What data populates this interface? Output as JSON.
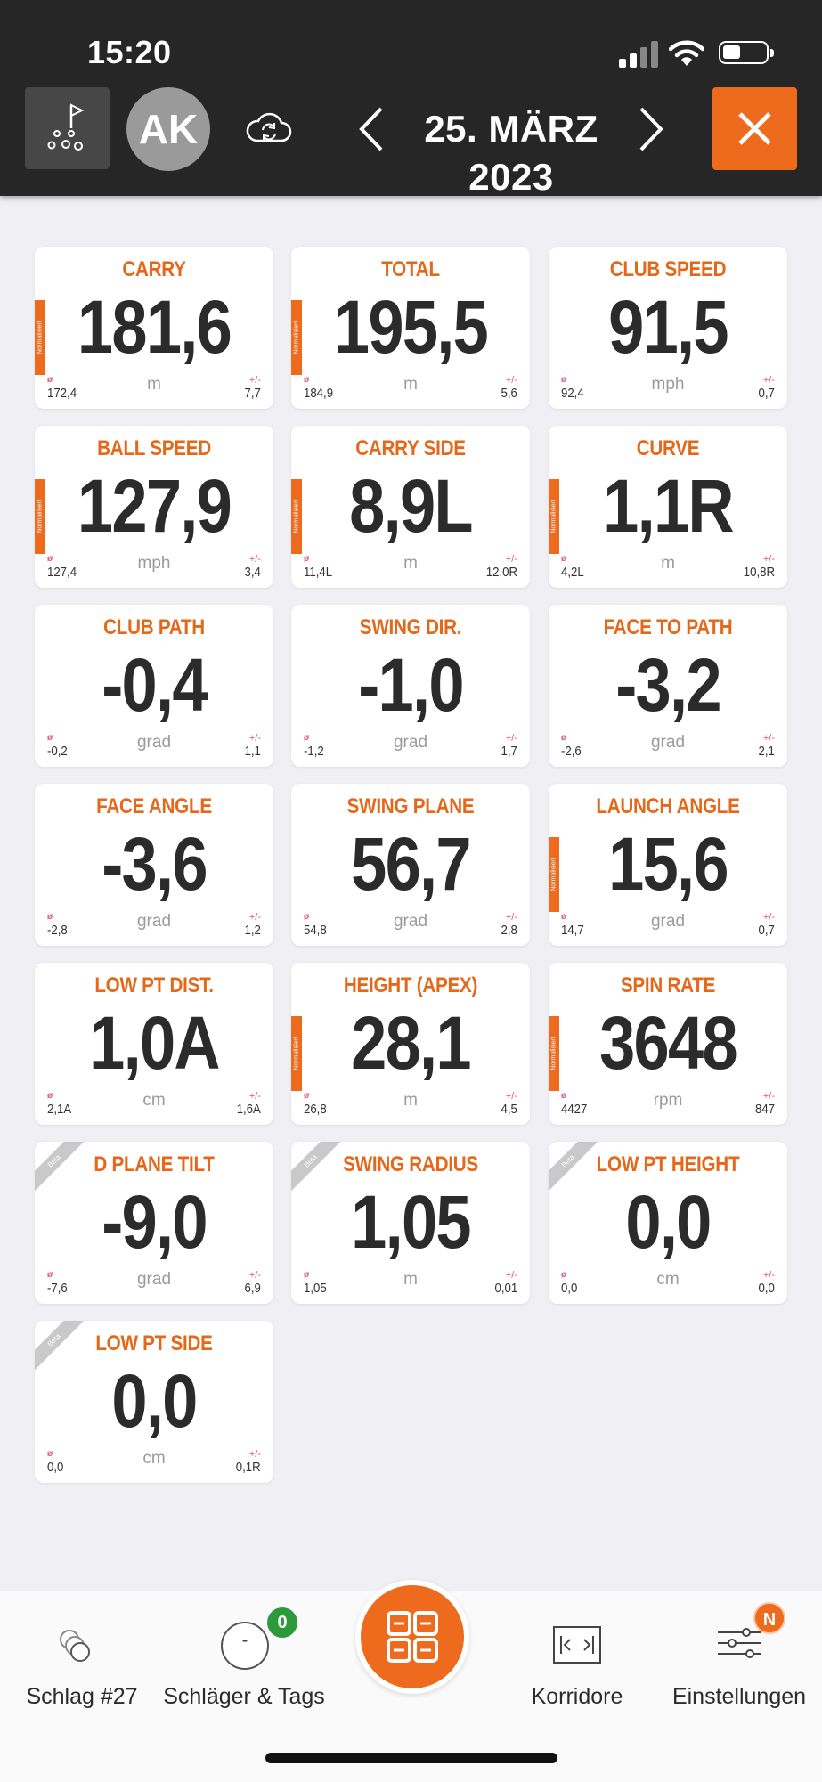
{
  "status_bar": {
    "time": "15:20"
  },
  "header": {
    "avatar_initials": "AK",
    "date": "25. MÄRZ 2023",
    "icons": [
      "golf-course-icon",
      "cloud-sync-icon",
      "chevron-left-icon",
      "chevron-right-icon",
      "close-icon"
    ],
    "accent_color": "#ee6a1d"
  },
  "tiles": [
    {
      "label": "CARRY",
      "value": "181,6",
      "unit": "m",
      "avg_symbol": "ø",
      "avg": "172,4",
      "pm_symbol": "+/-",
      "pm": "7,7",
      "normalized": true,
      "norm_text": "Normalisiert"
    },
    {
      "label": "TOTAL",
      "value": "195,5",
      "unit": "m",
      "avg_symbol": "ø",
      "avg": "184,9",
      "pm_symbol": "+/-",
      "pm": "5,6",
      "normalized": true,
      "norm_text": "Normalisiert"
    },
    {
      "label": "CLUB SPEED",
      "value": "91,5",
      "unit": "mph",
      "avg_symbol": "ø",
      "avg": "92,4",
      "pm_symbol": "+/-",
      "pm": "0,7"
    },
    {
      "label": "BALL SPEED",
      "value": "127,9",
      "unit": "mph",
      "avg_symbol": "ø",
      "avg": "127,4",
      "pm_symbol": "+/-",
      "pm": "3,4",
      "normalized": true,
      "norm_text": "Normalisiert"
    },
    {
      "label": "CARRY SIDE",
      "value": "8,9L",
      "unit": "m",
      "avg_symbol": "ø",
      "avg": "11,4L",
      "pm_symbol": "+/-",
      "pm": "12,0R",
      "normalized": true,
      "norm_text": "Normalisiert"
    },
    {
      "label": "CURVE",
      "value": "1,1R",
      "unit": "m",
      "avg_symbol": "ø",
      "avg": "4,2L",
      "pm_symbol": "+/-",
      "pm": "10,8R",
      "normalized": true,
      "norm_text": "Normalisiert"
    },
    {
      "label": "CLUB PATH",
      "value": "-0,4",
      "unit": "grad",
      "avg_symbol": "ø",
      "avg": "-0,2",
      "pm_symbol": "+/-",
      "pm": "1,1"
    },
    {
      "label": "SWING DIR.",
      "value": "-1,0",
      "unit": "grad",
      "avg_symbol": "ø",
      "avg": "-1,2",
      "pm_symbol": "+/-",
      "pm": "1,7"
    },
    {
      "label": "FACE TO PATH",
      "value": "-3,2",
      "unit": "grad",
      "avg_symbol": "ø",
      "avg": "-2,6",
      "pm_symbol": "+/-",
      "pm": "2,1"
    },
    {
      "label": "FACE ANGLE",
      "value": "-3,6",
      "unit": "grad",
      "avg_symbol": "ø",
      "avg": "-2,8",
      "pm_symbol": "+/-",
      "pm": "1,2"
    },
    {
      "label": "SWING PLANE",
      "value": "56,7",
      "unit": "grad",
      "avg_symbol": "ø",
      "avg": "54,8",
      "pm_symbol": "+/-",
      "pm": "2,8"
    },
    {
      "label": "LAUNCH ANGLE",
      "value": "15,6",
      "unit": "grad",
      "avg_symbol": "ø",
      "avg": "14,7",
      "pm_symbol": "+/-",
      "pm": "0,7",
      "normalized": true,
      "norm_text": "Normalisiert"
    },
    {
      "label": "LOW PT DIST.",
      "value": "1,0A",
      "unit": "cm",
      "avg_symbol": "ø",
      "avg": "2,1A",
      "pm_symbol": "+/-",
      "pm": "1,6A"
    },
    {
      "label": "HEIGHT (APEX)",
      "value": "28,1",
      "unit": "m",
      "avg_symbol": "ø",
      "avg": "26,8",
      "pm_symbol": "+/-",
      "pm": "4,5",
      "normalized": true,
      "norm_text": "Normalisiert"
    },
    {
      "label": "SPIN RATE",
      "value": "3648",
      "unit": "rpm",
      "avg_symbol": "ø",
      "avg": "4427",
      "pm_symbol": "+/-",
      "pm": "847",
      "normalized": true,
      "norm_text": "Normalisiert"
    },
    {
      "label": "D PLANE TILT",
      "value": "-9,0",
      "unit": "grad",
      "avg_symbol": "ø",
      "avg": "-7,6",
      "pm_symbol": "+/-",
      "pm": "6,9",
      "beta": true,
      "beta_text": "Beta"
    },
    {
      "label": "SWING RADIUS",
      "value": "1,05",
      "unit": "m",
      "avg_symbol": "ø",
      "avg": "1,05",
      "pm_symbol": "+/-",
      "pm": "0,01",
      "beta": true,
      "beta_text": "Beta"
    },
    {
      "label": "LOW PT HEIGHT",
      "value": "0,0",
      "unit": "cm",
      "avg_symbol": "ø",
      "avg": "0,0",
      "pm_symbol": "+/-",
      "pm": "0,0",
      "beta": true,
      "beta_text": "Beta"
    },
    {
      "label": "LOW PT SIDE",
      "value": "0,0",
      "unit": "cm",
      "avg_symbol": "ø",
      "avg": "0,0",
      "pm_symbol": "+/-",
      "pm": "0,1R",
      "beta": true,
      "beta_text": "Beta"
    }
  ],
  "bottom_bar": {
    "tabs": [
      {
        "label": "Schlag #27",
        "icon": "golf-balls-icon"
      },
      {
        "label": "Schläger & Tags",
        "icon": "club-icon",
        "badge": "0"
      },
      {
        "label": "Korridore",
        "icon": "corridor-icon"
      },
      {
        "label": "Einstellungen",
        "icon": "sliders-icon",
        "badge": "N"
      }
    ],
    "center_icon": "tiles-grid-icon",
    "club_icon_text": "-"
  }
}
